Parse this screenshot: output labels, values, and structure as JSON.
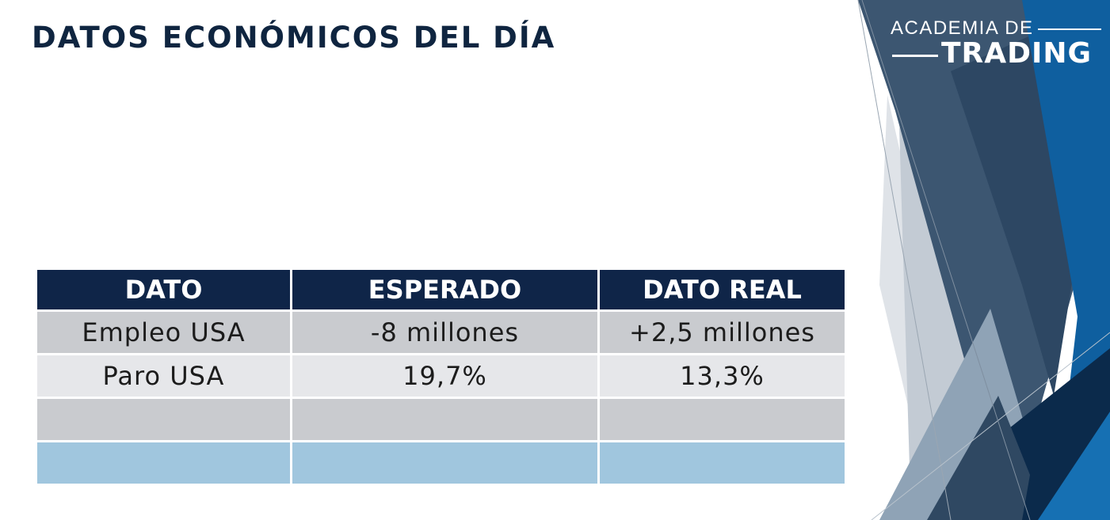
{
  "slide": {
    "title": "DATOS ECONÓMICOS DEL DÍA"
  },
  "logo": {
    "line1": "ACADEMIA DE",
    "line2": "TRADING"
  },
  "table": {
    "headers": [
      "DATO",
      "ESPERADO",
      "DATO REAL"
    ],
    "rows": [
      [
        "Empleo USA",
        "-8 millones",
        "+2,5 millones"
      ],
      [
        "Paro USA",
        "19,7%",
        "13,3%"
      ],
      [
        "",
        "",
        ""
      ],
      [
        "",
        "",
        ""
      ]
    ]
  },
  "colors": {
    "title": "#0f2540",
    "header_bg": "#0f2548",
    "row_gray": "#c9cbcf",
    "row_light": "#e6e7ea",
    "row_blue": "#a0c6de",
    "accent_blue": "#0e5f9e",
    "slate": "#3a5570"
  }
}
